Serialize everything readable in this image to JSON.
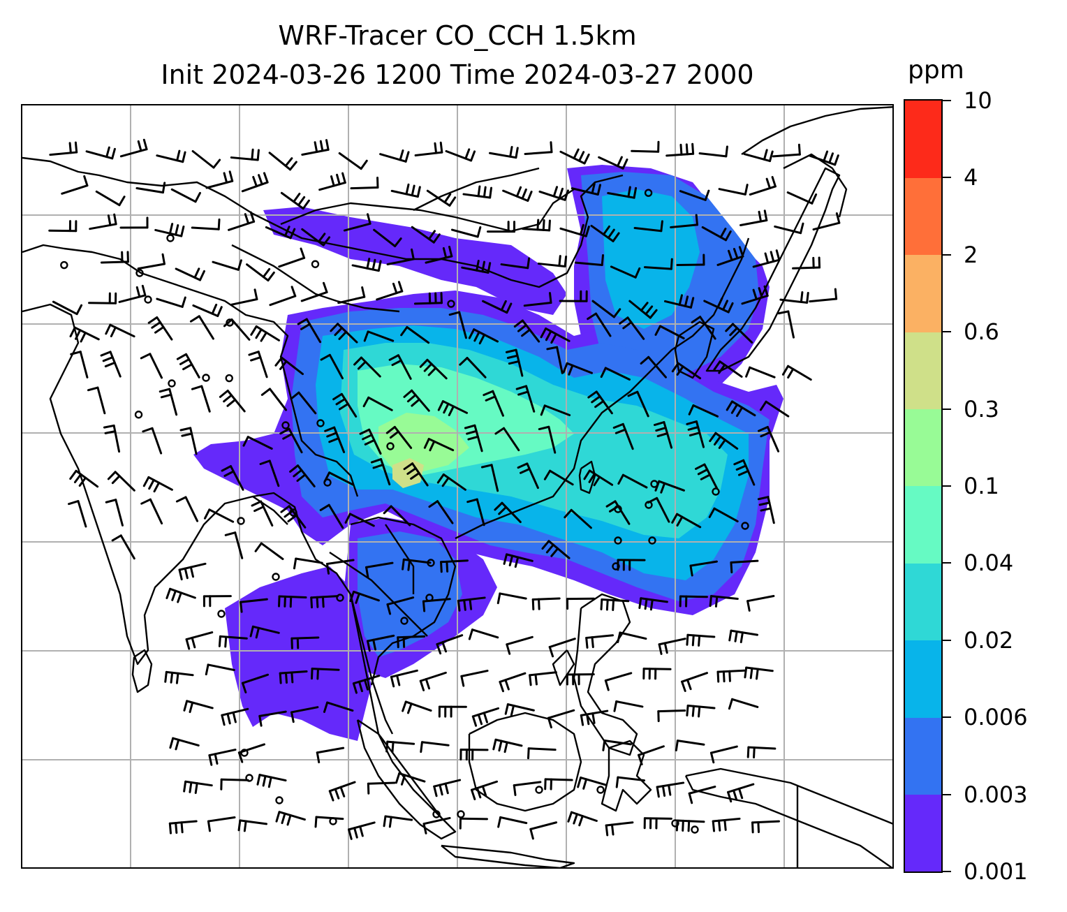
{
  "title": {
    "line1": "WRF-Tracer CO_CCH 1.5km",
    "line2": "Init 2024-03-26 1200 Time 2024-03-27 2000"
  },
  "colorbar": {
    "unit": "ppm",
    "levels": [
      "0.001",
      "0.003",
      "0.006",
      "0.02",
      "0.04",
      "0.1",
      "0.3",
      "0.6",
      "2",
      "4",
      "10"
    ],
    "colors": [
      "#6529fa",
      "#3373f2",
      "#08b4ea",
      "#2fd8d6",
      "#66fac3",
      "#98fb96",
      "#cfe089",
      "#fbb163",
      "#ff6f39",
      "#fd2a1a"
    ]
  },
  "map": {
    "gridlines": true,
    "gridline_color": "#b0b0b0",
    "coastline_color": "#000000",
    "features": [
      "coastlines",
      "country-borders",
      "wind-barbs",
      "calm-wind-circles",
      "tracer-concentration-shading"
    ]
  }
}
